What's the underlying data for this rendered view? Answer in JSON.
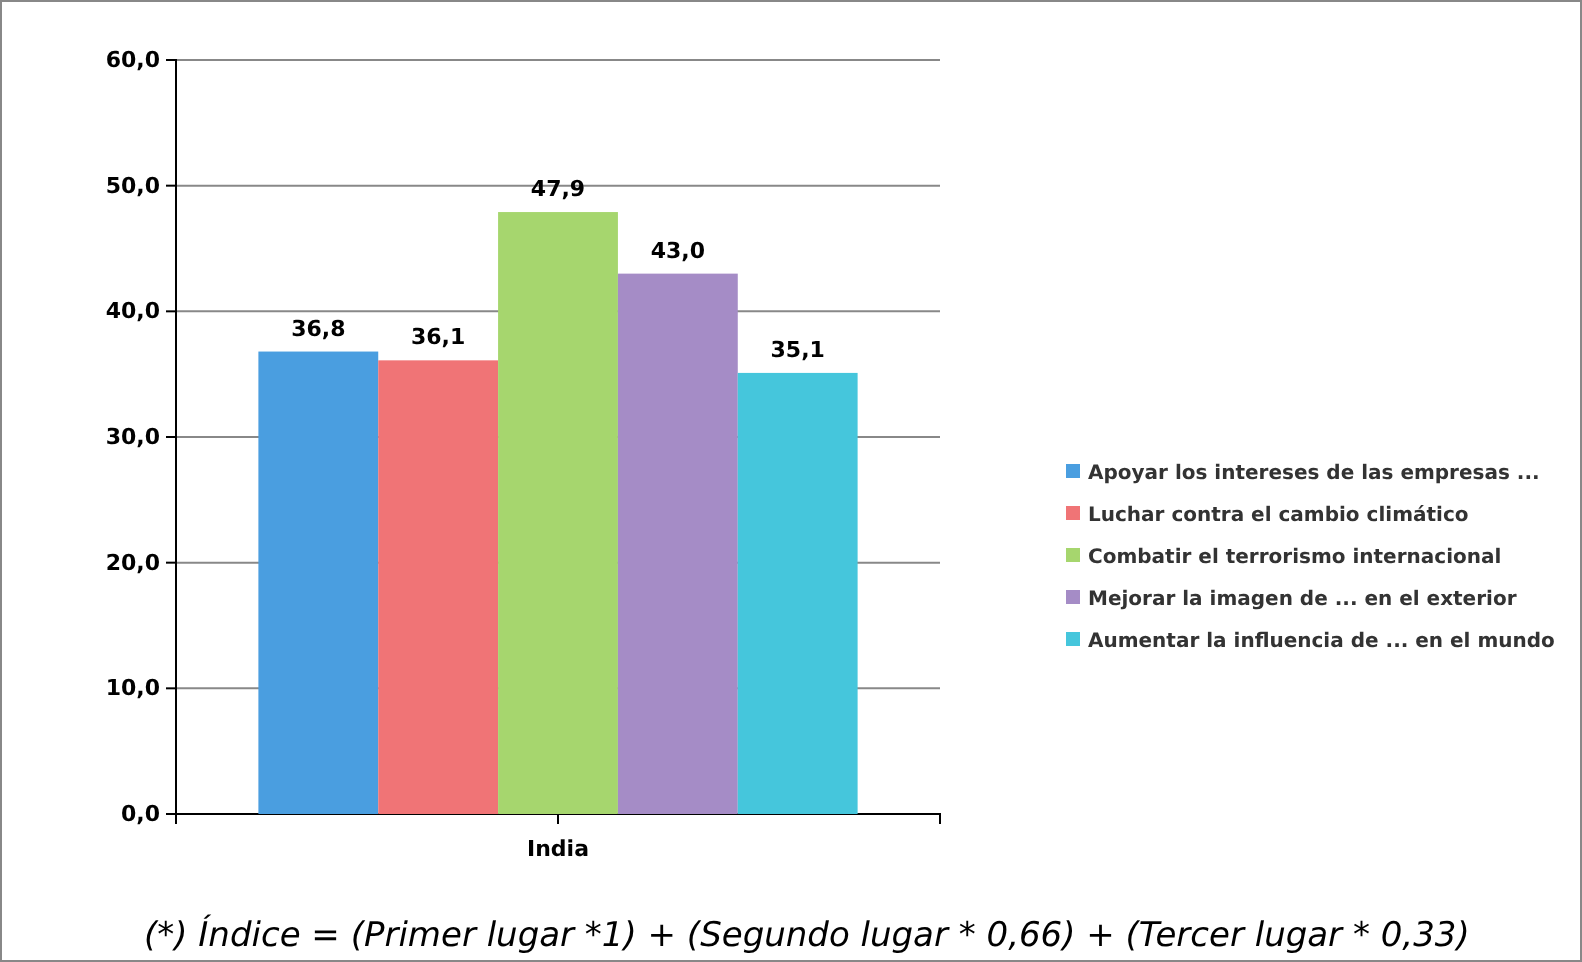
{
  "chart_data": {
    "type": "bar",
    "categories": [
      "India"
    ],
    "series": [
      {
        "name": "Apoyar los intereses de las empresas  ...",
        "color": "#4a9ee0",
        "values": [
          36.8
        ],
        "value_labels": [
          "36,8"
        ]
      },
      {
        "name": "Luchar contra el cambio climático",
        "color": "#f07476",
        "values": [
          36.1
        ],
        "value_labels": [
          "36,1"
        ]
      },
      {
        "name": "Combatir el terrorismo internacional",
        "color": "#a6d66e",
        "values": [
          47.9
        ],
        "value_labels": [
          "47,9"
        ]
      },
      {
        "name": "Mejorar la imagen de ... en el exterior",
        "color": "#a58cc6",
        "values": [
          43.0
        ],
        "value_labels": [
          "43,0"
        ]
      },
      {
        "name": "Aumentar la influencia de ... en el mundo",
        "color": "#45c6dc",
        "values": [
          35.1
        ],
        "value_labels": [
          "35,1"
        ]
      }
    ],
    "ylim": [
      0,
      60
    ],
    "yticks": [
      {
        "value": 0,
        "label": "0,0"
      },
      {
        "value": 10,
        "label": "10,0"
      },
      {
        "value": 20,
        "label": "20,0"
      },
      {
        "value": 30,
        "label": "30,0"
      },
      {
        "value": 40,
        "label": "40,0"
      },
      {
        "value": 50,
        "label": "50,0"
      },
      {
        "value": 60,
        "label": "60,0"
      }
    ],
    "grid": "y",
    "legend": "right",
    "annotations": [
      "(*) Índice = (Primer lugar *1) + (Segundo lugar * 0,66) + (Tercer lugar * 0,33)"
    ]
  }
}
